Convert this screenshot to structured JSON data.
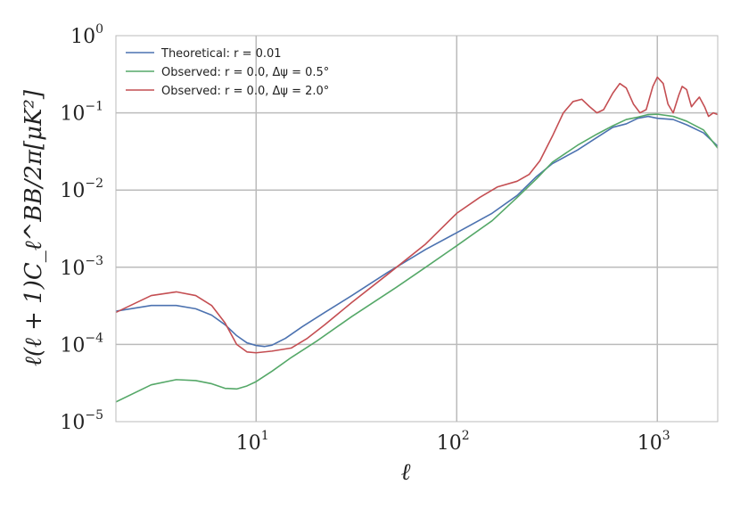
{
  "chart_data": {
    "type": "line",
    "xscale": "log",
    "yscale": "log",
    "xlim": [
      2,
      2000
    ],
    "ylim": [
      1e-05,
      1
    ],
    "grid": true,
    "legend_placement": "top-left",
    "xlabel": "ℓ",
    "ylabel": "ℓ(ℓ + 1)C_ℓ^BB/2π[μK²]",
    "x_ticks": [
      {
        "value": 10,
        "base": "10",
        "exp": "1"
      },
      {
        "value": 100,
        "base": "10",
        "exp": "2"
      },
      {
        "value": 1000,
        "base": "10",
        "exp": "3"
      }
    ],
    "y_ticks": [
      {
        "value": 1e-05,
        "base": "10",
        "exp": "−5"
      },
      {
        "value": 0.0001,
        "base": "10",
        "exp": "−4"
      },
      {
        "value": 0.001,
        "base": "10",
        "exp": "−3"
      },
      {
        "value": 0.01,
        "base": "10",
        "exp": "−2"
      },
      {
        "value": 0.1,
        "base": "10",
        "exp": "−1"
      },
      {
        "value": 1,
        "base": "10",
        "exp": "0"
      }
    ],
    "series": [
      {
        "name": "Theoretical: r = 0.01",
        "color": "#4c72b0",
        "points": [
          [
            2,
            0.00027
          ],
          [
            3,
            0.00032
          ],
          [
            4,
            0.00032
          ],
          [
            5,
            0.00029
          ],
          [
            6,
            0.00024
          ],
          [
            7,
            0.00018
          ],
          [
            8,
            0.00013
          ],
          [
            9,
            0.000105
          ],
          [
            10,
            9.7e-05
          ],
          [
            11,
            9.4e-05
          ],
          [
            12,
            9.8e-05
          ],
          [
            14,
            0.00012
          ],
          [
            17,
            0.00017
          ],
          [
            22,
            0.00026
          ],
          [
            30,
            0.00043
          ],
          [
            45,
            0.00085
          ],
          [
            70,
            0.0017
          ],
          [
            100,
            0.0028
          ],
          [
            150,
            0.005
          ],
          [
            200,
            0.0085
          ],
          [
            250,
            0.015
          ],
          [
            300,
            0.022
          ],
          [
            400,
            0.033
          ],
          [
            500,
            0.048
          ],
          [
            600,
            0.065
          ],
          [
            700,
            0.072
          ],
          [
            800,
            0.085
          ],
          [
            900,
            0.09
          ],
          [
            1000,
            0.085
          ],
          [
            1200,
            0.082
          ],
          [
            1400,
            0.07
          ],
          [
            1700,
            0.055
          ],
          [
            2000,
            0.037
          ]
        ]
      },
      {
        "name": "Observed: r = 0.0, Δψ = 0.5°",
        "color": "#55a868",
        "points": [
          [
            2,
            1.8e-05
          ],
          [
            3,
            3e-05
          ],
          [
            4,
            3.5e-05
          ],
          [
            5,
            3.4e-05
          ],
          [
            6,
            3.1e-05
          ],
          [
            7,
            2.7e-05
          ],
          [
            8,
            2.65e-05
          ],
          [
            9,
            2.9e-05
          ],
          [
            10,
            3.3e-05
          ],
          [
            12,
            4.5e-05
          ],
          [
            15,
            6.8e-05
          ],
          [
            20,
            0.00011
          ],
          [
            30,
            0.00023
          ],
          [
            50,
            0.00055
          ],
          [
            70,
            0.001
          ],
          [
            100,
            0.0019
          ],
          [
            150,
            0.004
          ],
          [
            200,
            0.008
          ],
          [
            250,
            0.014
          ],
          [
            300,
            0.023
          ],
          [
            400,
            0.038
          ],
          [
            500,
            0.053
          ],
          [
            600,
            0.068
          ],
          [
            700,
            0.082
          ],
          [
            800,
            0.088
          ],
          [
            900,
            0.095
          ],
          [
            1000,
            0.096
          ],
          [
            1200,
            0.09
          ],
          [
            1400,
            0.078
          ],
          [
            1700,
            0.06
          ],
          [
            2000,
            0.035
          ]
        ]
      },
      {
        "name": "Observed: r = 0.0, Δψ = 2.0°",
        "color": "#c44e52",
        "points": [
          [
            2,
            0.00026
          ],
          [
            3,
            0.00043
          ],
          [
            4,
            0.00048
          ],
          [
            5,
            0.00043
          ],
          [
            6,
            0.00032
          ],
          [
            7,
            0.00019
          ],
          [
            8,
            0.0001
          ],
          [
            9,
            8e-05
          ],
          [
            10,
            7.8e-05
          ],
          [
            12,
            8.2e-05
          ],
          [
            15,
            9e-05
          ],
          [
            18,
            0.00012
          ],
          [
            22,
            0.00018
          ],
          [
            30,
            0.00035
          ],
          [
            45,
            0.0008
          ],
          [
            70,
            0.002
          ],
          [
            100,
            0.005
          ],
          [
            130,
            0.008
          ],
          [
            160,
            0.011
          ],
          [
            200,
            0.013
          ],
          [
            230,
            0.016
          ],
          [
            260,
            0.024
          ],
          [
            300,
            0.05
          ],
          [
            340,
            0.1
          ],
          [
            380,
            0.14
          ],
          [
            420,
            0.15
          ],
          [
            460,
            0.12
          ],
          [
            500,
            0.1
          ],
          [
            540,
            0.11
          ],
          [
            600,
            0.18
          ],
          [
            650,
            0.24
          ],
          [
            700,
            0.21
          ],
          [
            760,
            0.13
          ],
          [
            820,
            0.1
          ],
          [
            880,
            0.11
          ],
          [
            950,
            0.22
          ],
          [
            1000,
            0.29
          ],
          [
            1070,
            0.24
          ],
          [
            1130,
            0.13
          ],
          [
            1200,
            0.1
          ],
          [
            1280,
            0.17
          ],
          [
            1330,
            0.22
          ],
          [
            1400,
            0.2
          ],
          [
            1480,
            0.12
          ],
          [
            1550,
            0.14
          ],
          [
            1620,
            0.16
          ],
          [
            1720,
            0.12
          ],
          [
            1800,
            0.09
          ],
          [
            1900,
            0.1
          ],
          [
            2000,
            0.095
          ]
        ]
      }
    ]
  }
}
